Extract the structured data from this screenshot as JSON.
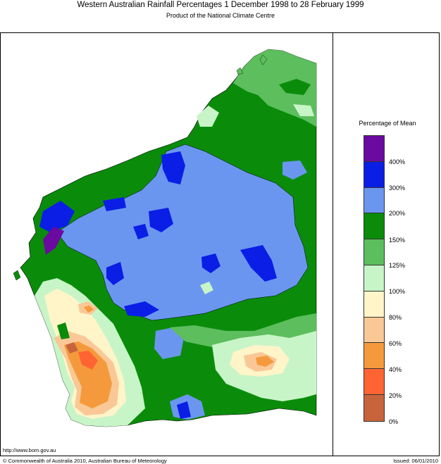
{
  "header": {
    "title": "Western Australian Rainfall Percentages 1 December 1998 to 28 February 1999",
    "subtitle": "Product of the National Climate Centre"
  },
  "legend": {
    "title": "Percentage of Mean",
    "bands": [
      {
        "color": "#6a0aa0"
      },
      {
        "color": "#0a1ee6"
      },
      {
        "color": "#6b96f0"
      },
      {
        "color": "#0a8c0a"
      },
      {
        "color": "#5cbe5c"
      },
      {
        "color": "#c8f5c8"
      },
      {
        "color": "#fff5c8"
      },
      {
        "color": "#fac896"
      },
      {
        "color": "#f59a3c"
      },
      {
        "color": "#ff6432"
      },
      {
        "color": "#c8643c"
      }
    ],
    "ticks": [
      "400%",
      "300%",
      "200%",
      "150%",
      "125%",
      "100%",
      "80%",
      "60%",
      "40%",
      "20%",
      "0%"
    ]
  },
  "footer": {
    "url": "http://www.bom.gov.au",
    "copyright": "© Commonwealth of Australia 2010, Australian Bureau of Meteorology",
    "issued": "Issued: 06/01/2010"
  }
}
